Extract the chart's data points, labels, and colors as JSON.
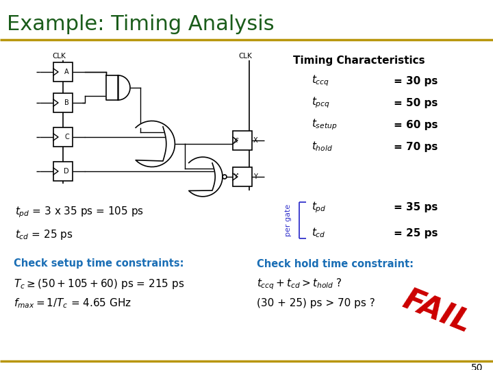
{
  "title": "Example: Timing Analysis",
  "title_color": "#1a5c1a",
  "title_fontsize": 22,
  "bg_color": "#ffffff",
  "separator_color": "#b8960c",
  "timing_header": "Timing Characteristics",
  "timing_labels": [
    "$t_{ccq}$",
    "$t_{pcq}$",
    "$t_{setup}$",
    "$t_{hold}$"
  ],
  "timing_values": [
    "= 30 ps",
    "= 50 ps",
    "= 60 ps",
    "= 70 ps"
  ],
  "pg_labels": [
    "$t_{pd}$",
    "$t_{cd}$"
  ],
  "pg_values": [
    "= 35 ps",
    "= 25 ps"
  ],
  "per_gate_label": "per gate",
  "per_gate_color": "#3333cc",
  "tpd_line": "$t_{pd}$ = 3 x 35 ps = 105 ps",
  "tcd_line": "$t_{cd}$ = 25 ps",
  "check_left_header": "Check setup time constraints:",
  "check_right_header": "Check hold time constraint:",
  "check_color": "#1a6eb5",
  "formula_left_1": "$T_c \\geq (50 + 105 + 60)$ ps = 215 ps",
  "formula_left_2": "$f_{max} = 1/T_c$ = 4.65 GHz",
  "formula_right_1": "$t_{ccq} + t_{cd} > t_{hold}$ ?",
  "formula_right_2": "(30 + 25) ps > 70 ps ?",
  "fail_text": "FAIL",
  "fail_color": "#cc0000",
  "page_number": "50"
}
